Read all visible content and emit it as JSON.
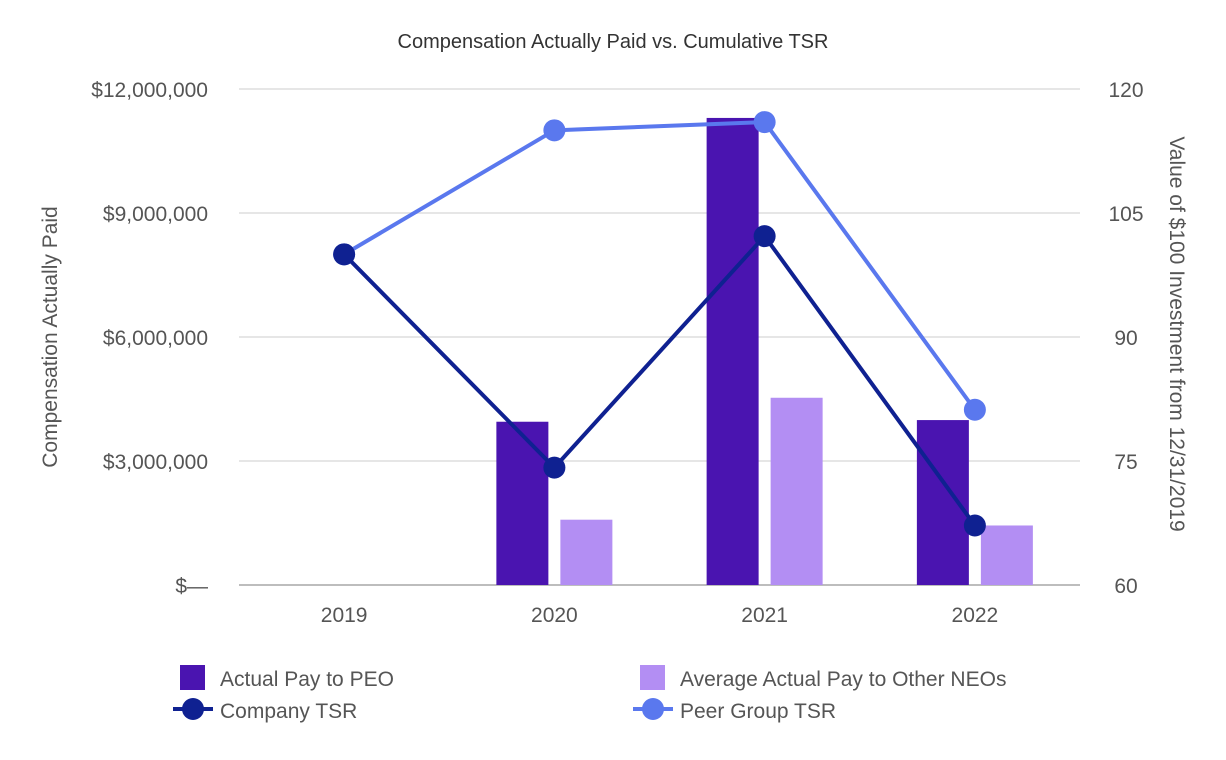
{
  "chart_data": {
    "type": "bar",
    "title": "Compensation Actually Paid vs. Cumulative TSR",
    "categories": [
      "2019",
      "2020",
      "2021",
      "2022"
    ],
    "ylabel": "Compensation Actually Paid",
    "y2label": "Value of $100 Investment from 12/31/2019",
    "ylim": [
      0,
      12000000
    ],
    "y2lim": [
      60,
      120
    ],
    "yticks": [
      0,
      3000000,
      6000000,
      9000000,
      12000000
    ],
    "ytick_labels": [
      "$—",
      "$3,000,000",
      "$6,000,000",
      "$9,000,000",
      "$12,000,000"
    ],
    "y2ticks": [
      60,
      75,
      90,
      105,
      120
    ],
    "y2tick_labels": [
      "60",
      "75",
      "90",
      "105",
      "120"
    ],
    "bar_series": [
      {
        "name": "Actual Pay to PEO",
        "color": "#4a14b0",
        "values": [
          0,
          3950000,
          11300000,
          3990000
        ]
      },
      {
        "name": "Average Actual Pay to Other NEOs",
        "color": "#b38ef3",
        "values": [
          0,
          1580000,
          4530000,
          1440000
        ]
      }
    ],
    "line_series": [
      {
        "name": "Company TSR",
        "color": "#0f2191",
        "axis": "right",
        "values": [
          100,
          74.2,
          102.2,
          67.2
        ]
      },
      {
        "name": "Peer Group TSR",
        "color": "#5a78ee",
        "axis": "right",
        "values": [
          100,
          115,
          116,
          81.2
        ]
      }
    ],
    "legend": [
      {
        "label": "Actual Pay to PEO",
        "kind": "bar",
        "color": "#4a14b0"
      },
      {
        "label": "Average Actual Pay to Other NEOs",
        "kind": "bar",
        "color": "#b38ef3"
      },
      {
        "label": "Company TSR",
        "kind": "line",
        "color": "#0f2191"
      },
      {
        "label": "Peer Group TSR",
        "kind": "line",
        "color": "#5a78ee"
      }
    ],
    "legend_position": "bottom",
    "grid": true
  }
}
